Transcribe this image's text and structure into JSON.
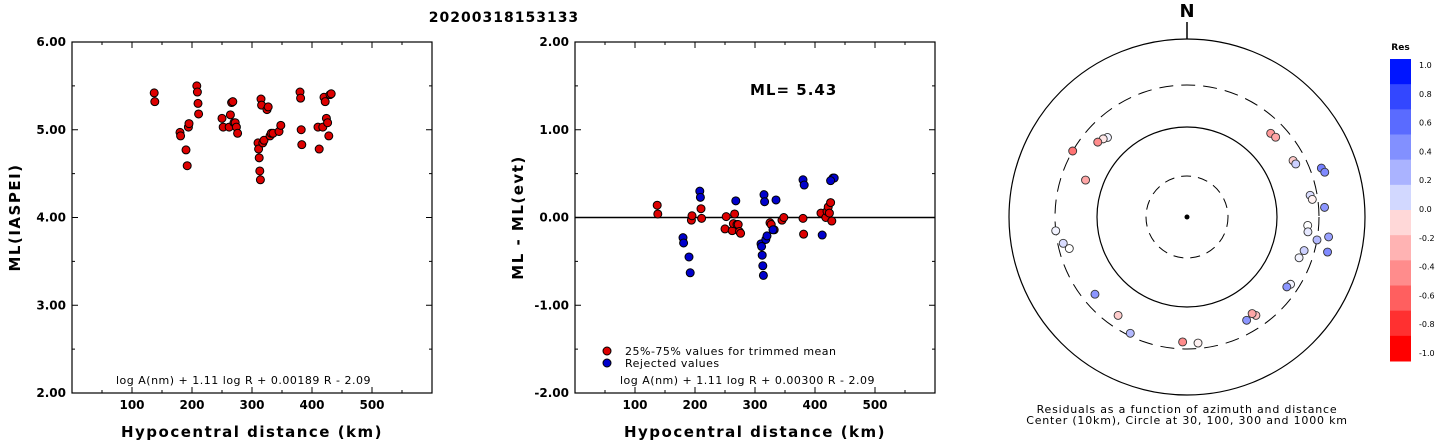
{
  "figure_title": "20200318153133",
  "chart_data": [
    {
      "type": "scatter",
      "ylabel": "ML(IASPEI)",
      "xlabel": "Hypocentral distance (km)",
      "xlim": [
        0,
        600
      ],
      "ylim": [
        2.0,
        6.0
      ],
      "xticks": [
        "100",
        "200",
        "300",
        "400",
        "500"
      ],
      "yticks": [
        "2.00",
        "3.00",
        "4.00",
        "5.00",
        "6.00"
      ],
      "formula": "log A(nm) + 1.11 log R + 0.00189 R - 2.09",
      "series": [
        {
          "color": "#dd0000",
          "points": [
            [
              137,
              5.42
            ],
            [
              138,
              5.32
            ],
            [
              180,
              4.97
            ],
            [
              181,
              4.93
            ],
            [
              190,
              4.77
            ],
            [
              192,
              4.59
            ],
            [
              194,
              5.03
            ],
            [
              195,
              5.07
            ],
            [
              208,
              5.5
            ],
            [
              209,
              5.43
            ],
            [
              210,
              5.3
            ],
            [
              211,
              5.18
            ],
            [
              250,
              5.13
            ],
            [
              252,
              5.03
            ],
            [
              262,
              5.03
            ],
            [
              264,
              5.17
            ],
            [
              266,
              5.31
            ],
            [
              268,
              5.32
            ],
            [
              270,
              5.08
            ],
            [
              272,
              5.08
            ],
            [
              274,
              5.03
            ],
            [
              276,
              4.96
            ],
            [
              310,
              4.85
            ],
            [
              311,
              4.78
            ],
            [
              312,
              4.68
            ],
            [
              313,
              4.53
            ],
            [
              314,
              4.43
            ],
            [
              315,
              5.35
            ],
            [
              316,
              5.28
            ],
            [
              318,
              4.85
            ],
            [
              320,
              4.88
            ],
            [
              325,
              5.23
            ],
            [
              327,
              5.26
            ],
            [
              330,
              4.93
            ],
            [
              332,
              4.96
            ],
            [
              335,
              4.96
            ],
            [
              345,
              4.98
            ],
            [
              348,
              5.05
            ],
            [
              380,
              5.43
            ],
            [
              381,
              5.36
            ],
            [
              382,
              5.0
            ],
            [
              383,
              4.83
            ],
            [
              410,
              5.03
            ],
            [
              412,
              4.78
            ],
            [
              418,
              5.03
            ],
            [
              420,
              5.37
            ],
            [
              422,
              5.32
            ],
            [
              424,
              5.13
            ],
            [
              426,
              5.08
            ],
            [
              428,
              4.93
            ],
            [
              430,
              5.4
            ],
            [
              432,
              5.41
            ]
          ]
        }
      ]
    },
    {
      "type": "scatter",
      "ylabel": "ML - ML(evt)",
      "xlabel": "Hypocentral distance (km)",
      "xlim": [
        0,
        600
      ],
      "ylim": [
        -2.0,
        2.0
      ],
      "xticks": [
        "100",
        "200",
        "300",
        "400",
        "500"
      ],
      "yticks": [
        "-2.00",
        "-1.00",
        "0.00",
        "1.00",
        "2.00"
      ],
      "annotation": "ML= 5.43",
      "formula": "log A(nm) + 1.11 log R + 0.00300 R - 2.09",
      "legend": [
        "25%-75% values for trimmed mean",
        "Rejected values"
      ],
      "series": [
        {
          "name": "25%-75% values for trimmed mean",
          "color": "#dd0000",
          "points": [
            [
              137,
              0.14
            ],
            [
              138,
              0.04
            ],
            [
              194,
              -0.03
            ],
            [
              195,
              0.02
            ],
            [
              210,
              0.1
            ],
            [
              211,
              -0.01
            ],
            [
              250,
              -0.13
            ],
            [
              252,
              0.01
            ],
            [
              262,
              -0.15
            ],
            [
              264,
              -0.07
            ],
            [
              266,
              0.04
            ],
            [
              270,
              -0.08
            ],
            [
              272,
              -0.08
            ],
            [
              274,
              -0.16
            ],
            [
              276,
              -0.18
            ],
            [
              325,
              -0.06
            ],
            [
              327,
              -0.08
            ],
            [
              332,
              -0.14
            ],
            [
              345,
              -0.03
            ],
            [
              348,
              0.0
            ],
            [
              380,
              -0.01
            ],
            [
              381,
              -0.19
            ],
            [
              410,
              0.05
            ],
            [
              418,
              0.0
            ],
            [
              420,
              0.07
            ],
            [
              422,
              0.12
            ],
            [
              424,
              0.05
            ],
            [
              426,
              0.17
            ],
            [
              428,
              -0.04
            ]
          ]
        },
        {
          "name": "Rejected values",
          "color": "#0000cc",
          "points": [
            [
              180,
              -0.23
            ],
            [
              181,
              -0.29
            ],
            [
              190,
              -0.45
            ],
            [
              192,
              -0.63
            ],
            [
              208,
              0.3
            ],
            [
              209,
              0.23
            ],
            [
              268,
              0.19
            ],
            [
              310,
              -0.3
            ],
            [
              311,
              -0.33
            ],
            [
              312,
              -0.43
            ],
            [
              313,
              -0.55
            ],
            [
              314,
              -0.66
            ],
            [
              315,
              0.26
            ],
            [
              316,
              0.18
            ],
            [
              318,
              -0.25
            ],
            [
              320,
              -0.21
            ],
            [
              330,
              -0.14
            ],
            [
              335,
              0.2
            ],
            [
              380,
              0.43
            ],
            [
              382,
              0.37
            ],
            [
              412,
              -0.2
            ],
            [
              430,
              0.45
            ],
            [
              432,
              0.45
            ],
            [
              426,
              0.42
            ]
          ]
        }
      ]
    },
    {
      "type": "polar-scatter",
      "north_label": "N",
      "caption_line1": "Residuals as a function of azimuth and distance",
      "caption_line2": "Center (10km), Circle at 30, 100, 300 and 1000 km",
      "colorbar_title": "Res",
      "colorbar_ticks": [
        "1.0",
        "0.8",
        "0.6",
        "0.4",
        "0.2",
        "0.0",
        "-0.2",
        "-0.4",
        "-0.6",
        "-0.8",
        "-1.0"
      ],
      "colorbar_colors": [
        "#0015ff",
        "#3347ff",
        "#5a6bff",
        "#8290ff",
        "#aab3ff",
        "#d2d8ff",
        "#ffd8d8",
        "#ffb3b3",
        "#ff8c8c",
        "#ff5f5f",
        "#ff3030",
        "#ff0000"
      ],
      "points": [
        {
          "az": 315,
          "dist": 180,
          "res": 0.05
        },
        {
          "az": 313,
          "dist": 190,
          "res": -0.1
        },
        {
          "az": 310,
          "dist": 200,
          "res": -0.45
        },
        {
          "az": 300,
          "dist": 300,
          "res": -0.55
        },
        {
          "az": 45,
          "dist": 210,
          "res": -0.4
        },
        {
          "az": 48,
          "dist": 215,
          "res": -0.35
        },
        {
          "az": 62,
          "dist": 220,
          "res": -0.2
        },
        {
          "az": 64,
          "dist": 225,
          "res": 0.2
        },
        {
          "az": 70,
          "dist": 400,
          "res": 0.55
        },
        {
          "az": 72,
          "dist": 420,
          "res": 0.5
        },
        {
          "az": 80,
          "dist": 250,
          "res": 0.15
        },
        {
          "az": 82,
          "dist": 260,
          "res": -0.05
        },
        {
          "az": 86,
          "dist": 350,
          "res": 0.45
        },
        {
          "az": 94,
          "dist": 225,
          "res": 0.0
        },
        {
          "az": 97,
          "dist": 230,
          "res": 0.1
        },
        {
          "az": 98,
          "dist": 400,
          "res": 0.4
        },
        {
          "az": 100,
          "dist": 300,
          "res": 0.3
        },
        {
          "az": 104,
          "dist": 420,
          "res": 0.5
        },
        {
          "az": 106,
          "dist": 230,
          "res": 0.2
        },
        {
          "az": 110,
          "dist": 215,
          "res": 0.05
        },
        {
          "az": 123,
          "dist": 240,
          "res": 0.05
        },
        {
          "az": 125,
          "dist": 230,
          "res": 0.45
        },
        {
          "az": 145,
          "dist": 220,
          "res": -0.25
        },
        {
          "az": 150,
          "dist": 215,
          "res": 0.45
        },
        {
          "az": 146,
          "dist": 200,
          "res": -0.35
        },
        {
          "az": 175,
          "dist": 260,
          "res": -0.05
        },
        {
          "az": 182,
          "dist": 250,
          "res": -0.45
        },
        {
          "az": 206,
          "dist": 280,
          "res": 0.3
        },
        {
          "az": 215,
          "dist": 220,
          "res": -0.2
        },
        {
          "az": 230,
          "dist": 220,
          "res": 0.45
        },
        {
          "az": 255,
          "dist": 230,
          "res": 0.0
        },
        {
          "az": 258,
          "dist": 260,
          "res": 0.15
        },
        {
          "az": 264,
          "dist": 300,
          "res": 0.05
        },
        {
          "az": 290,
          "dist": 160,
          "res": -0.35
        }
      ]
    }
  ]
}
